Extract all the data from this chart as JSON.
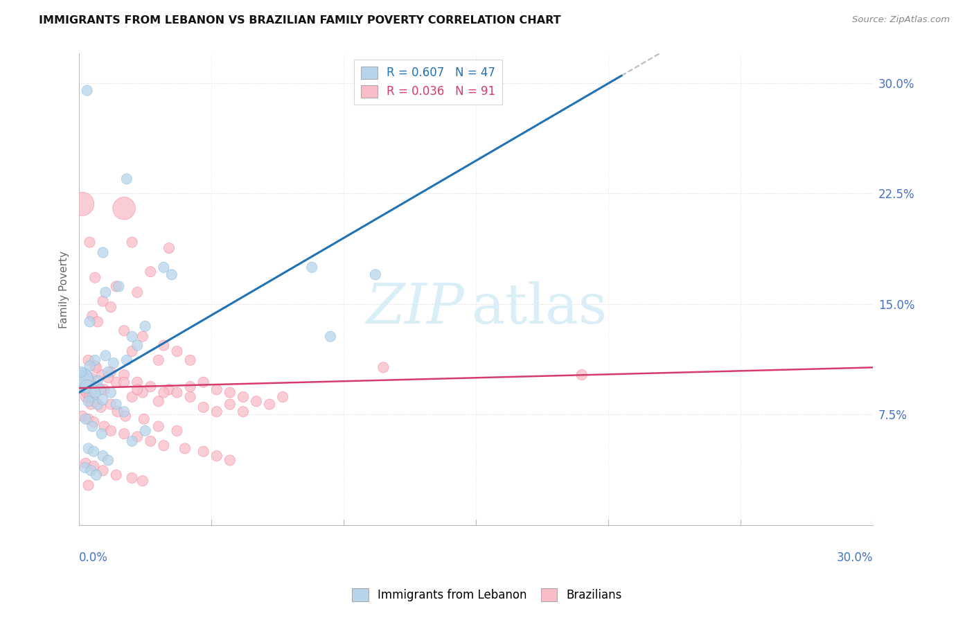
{
  "title": "IMMIGRANTS FROM LEBANON VS BRAZILIAN FAMILY POVERTY CORRELATION CHART",
  "source": "Source: ZipAtlas.com",
  "ylabel": "Family Poverty",
  "right_yticks": [
    7.5,
    15.0,
    22.5,
    30.0
  ],
  "right_ytick_labels": [
    "7.5%",
    "15.0%",
    "22.5%",
    "30.0%"
  ],
  "legend_r1": "R = 0.607",
  "legend_n1": "N = 47",
  "legend_r2": "R = 0.036",
  "legend_n2": "N = 91",
  "blue_color": "#b8d4ea",
  "pink_color": "#f9bdc8",
  "blue_edge_color": "#7ab0d4",
  "pink_edge_color": "#f07090",
  "blue_line_color": "#2171b5",
  "pink_line_color": "#d63b6a",
  "dash_line_color": "#bbbbbb",
  "label_color": "#4472c4",
  "title_color": "#111111",
  "grid_color": "#d8d8d8",
  "background_color": "#ffffff",
  "xmin": 0.0,
  "xmax": 30.0,
  "ymin": 0.0,
  "ymax": 32.0,
  "blue_line_x0": 0.0,
  "blue_line_y0": 9.0,
  "blue_line_x1": 20.5,
  "blue_line_y1": 30.5,
  "blue_dash_x0": 20.5,
  "blue_dash_x1": 29.0,
  "pink_line_x0": 0.0,
  "pink_line_y0": 9.3,
  "pink_line_x1": 30.0,
  "pink_line_y1": 10.7,
  "blue_points_x": [
    0.3,
    1.8,
    0.9,
    0.4,
    1.0,
    1.5,
    3.2,
    3.5,
    8.8,
    11.2,
    2.0,
    2.2,
    2.5,
    1.0,
    1.8,
    0.25,
    0.6,
    0.4,
    0.7,
    0.8,
    1.1,
    1.3,
    0.12,
    0.15,
    0.3,
    0.5,
    0.6,
    0.35,
    0.7,
    0.9,
    1.2,
    1.4,
    1.7,
    0.25,
    0.5,
    0.85,
    2.0,
    2.5,
    0.35,
    0.55,
    0.9,
    1.1,
    0.22,
    0.45,
    0.65,
    9.5,
    0.08
  ],
  "blue_points_y": [
    29.5,
    23.5,
    18.5,
    13.8,
    15.8,
    16.2,
    17.5,
    17.0,
    17.5,
    17.0,
    12.8,
    12.2,
    13.5,
    11.5,
    11.2,
    10.2,
    11.2,
    10.8,
    9.8,
    9.2,
    10.4,
    11.0,
    9.8,
    10.0,
    9.4,
    8.7,
    9.0,
    8.4,
    8.2,
    8.5,
    9.0,
    8.2,
    7.7,
    7.2,
    6.7,
    6.2,
    5.7,
    6.4,
    5.2,
    5.0,
    4.7,
    4.4,
    3.9,
    3.7,
    3.4,
    12.8,
    10.4
  ],
  "blue_sizes": [
    120,
    120,
    120,
    120,
    120,
    120,
    120,
    120,
    120,
    120,
    120,
    120,
    120,
    120,
    120,
    120,
    120,
    120,
    120,
    120,
    120,
    120,
    600,
    400,
    200,
    120,
    120,
    120,
    120,
    120,
    120,
    120,
    120,
    120,
    120,
    120,
    120,
    120,
    120,
    120,
    120,
    120,
    120,
    120,
    120,
    120,
    120
  ],
  "pink_points_x": [
    0.12,
    1.7,
    0.4,
    2.0,
    3.4,
    2.7,
    0.6,
    1.4,
    2.2,
    0.9,
    1.2,
    0.5,
    0.7,
    1.7,
    2.4,
    3.2,
    3.7,
    4.2,
    3.0,
    2.0,
    0.35,
    0.6,
    0.85,
    1.2,
    1.7,
    2.2,
    2.7,
    3.4,
    4.7,
    5.2,
    5.7,
    6.2,
    6.7,
    7.2,
    7.7,
    0.25,
    0.45,
    0.7,
    0.95,
    1.4,
    2.0,
    2.4,
    3.0,
    3.7,
    4.2,
    4.7,
    5.2,
    5.7,
    6.2,
    0.12,
    0.35,
    0.55,
    0.95,
    1.2,
    1.7,
    2.2,
    2.7,
    3.2,
    4.0,
    4.7,
    5.2,
    5.7,
    0.25,
    0.55,
    0.9,
    1.4,
    2.0,
    2.4,
    0.35,
    11.5,
    19.0,
    0.12,
    0.25,
    0.45,
    0.65,
    1.1,
    1.7,
    2.2,
    3.2,
    4.2,
    0.18,
    0.28,
    0.4,
    0.6,
    0.82,
    1.2,
    1.45,
    1.75,
    2.45,
    3.0,
    3.7
  ],
  "pink_points_y": [
    21.8,
    21.5,
    19.2,
    19.2,
    18.8,
    17.2,
    16.8,
    16.2,
    15.8,
    15.2,
    14.8,
    14.2,
    13.8,
    13.2,
    12.8,
    12.2,
    11.8,
    11.2,
    11.2,
    11.8,
    11.2,
    10.8,
    10.2,
    10.4,
    10.2,
    9.7,
    9.4,
    9.2,
    9.7,
    9.2,
    9.0,
    8.7,
    8.4,
    8.2,
    8.7,
    9.7,
    10.0,
    9.4,
    9.2,
    9.7,
    8.7,
    9.0,
    8.4,
    9.0,
    8.7,
    8.0,
    7.7,
    8.2,
    7.7,
    7.4,
    7.2,
    7.0,
    6.7,
    6.4,
    6.2,
    6.0,
    5.7,
    5.4,
    5.2,
    5.0,
    4.7,
    4.4,
    4.2,
    4.0,
    3.7,
    3.4,
    3.2,
    3.0,
    2.7,
    10.7,
    10.2,
    10.2,
    8.7,
    8.2,
    10.7,
    10.0,
    9.7,
    9.2,
    9.0,
    9.4,
    9.2,
    9.0,
    8.7,
    8.4,
    8.0,
    8.2,
    7.7,
    7.4,
    7.2,
    6.7,
    6.4
  ],
  "pink_sizes": [
    600,
    550,
    120,
    120,
    120,
    120,
    120,
    120,
    120,
    120,
    120,
    120,
    120,
    120,
    120,
    120,
    120,
    120,
    120,
    120,
    120,
    120,
    120,
    120,
    120,
    120,
    120,
    120,
    120,
    120,
    120,
    120,
    120,
    120,
    120,
    120,
    120,
    120,
    120,
    120,
    120,
    120,
    120,
    120,
    120,
    120,
    120,
    120,
    120,
    120,
    120,
    120,
    120,
    120,
    120,
    120,
    120,
    120,
    120,
    120,
    120,
    120,
    120,
    120,
    120,
    120,
    120,
    120,
    120,
    120,
    120,
    120,
    120,
    120,
    120,
    120,
    120,
    120,
    120,
    120,
    120,
    120,
    120,
    120,
    120,
    120,
    120,
    120,
    120,
    120,
    120
  ]
}
